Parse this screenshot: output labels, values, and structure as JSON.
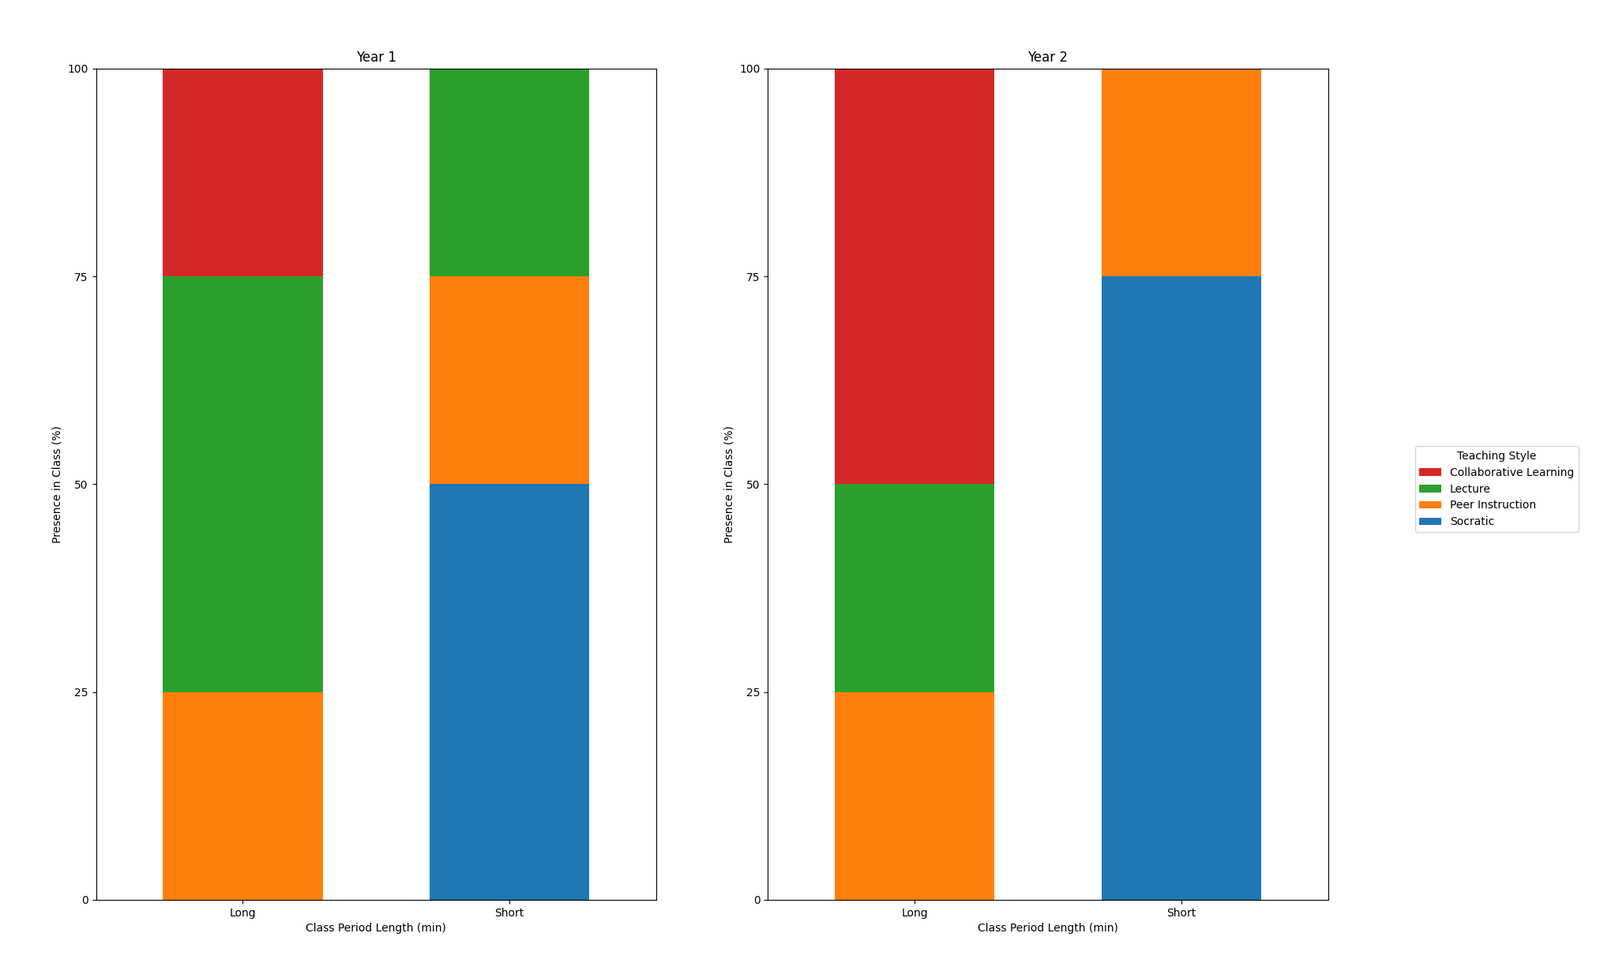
{
  "chart_data": [
    {
      "type": "bar",
      "stacked": true,
      "title": "Year 1",
      "xlabel": "Class Period Length (min)",
      "ylabel": "Presence in Class (%)",
      "categories": [
        "Long",
        "Short"
      ],
      "series": [
        {
          "name": "Socratic",
          "values": [
            0,
            50
          ]
        },
        {
          "name": "Peer Instruction",
          "values": [
            25,
            25
          ]
        },
        {
          "name": "Lecture",
          "values": [
            50,
            25
          ]
        },
        {
          "name": "Collaborative Learning",
          "values": [
            25,
            0
          ]
        }
      ],
      "ylim": [
        0,
        100
      ],
      "yticks": [
        0,
        25,
        50,
        75,
        100
      ],
      "legend": "center right",
      "legend_title": "Teaching Style"
    },
    {
      "type": "bar",
      "stacked": true,
      "title": "Year 2",
      "xlabel": "Class Period Length (min)",
      "ylabel": "Presence in Class (%)",
      "categories": [
        "Long",
        "Short"
      ],
      "series": [
        {
          "name": "Socratic",
          "values": [
            0,
            75
          ]
        },
        {
          "name": "Peer Instruction",
          "values": [
            25,
            25
          ]
        },
        {
          "name": "Lecture",
          "values": [
            25,
            0
          ]
        },
        {
          "name": "Collaborative Learning",
          "values": [
            50,
            0
          ]
        }
      ],
      "ylim": [
        0,
        100
      ],
      "yticks": [
        0,
        25,
        50,
        75,
        100
      ]
    }
  ]
}
